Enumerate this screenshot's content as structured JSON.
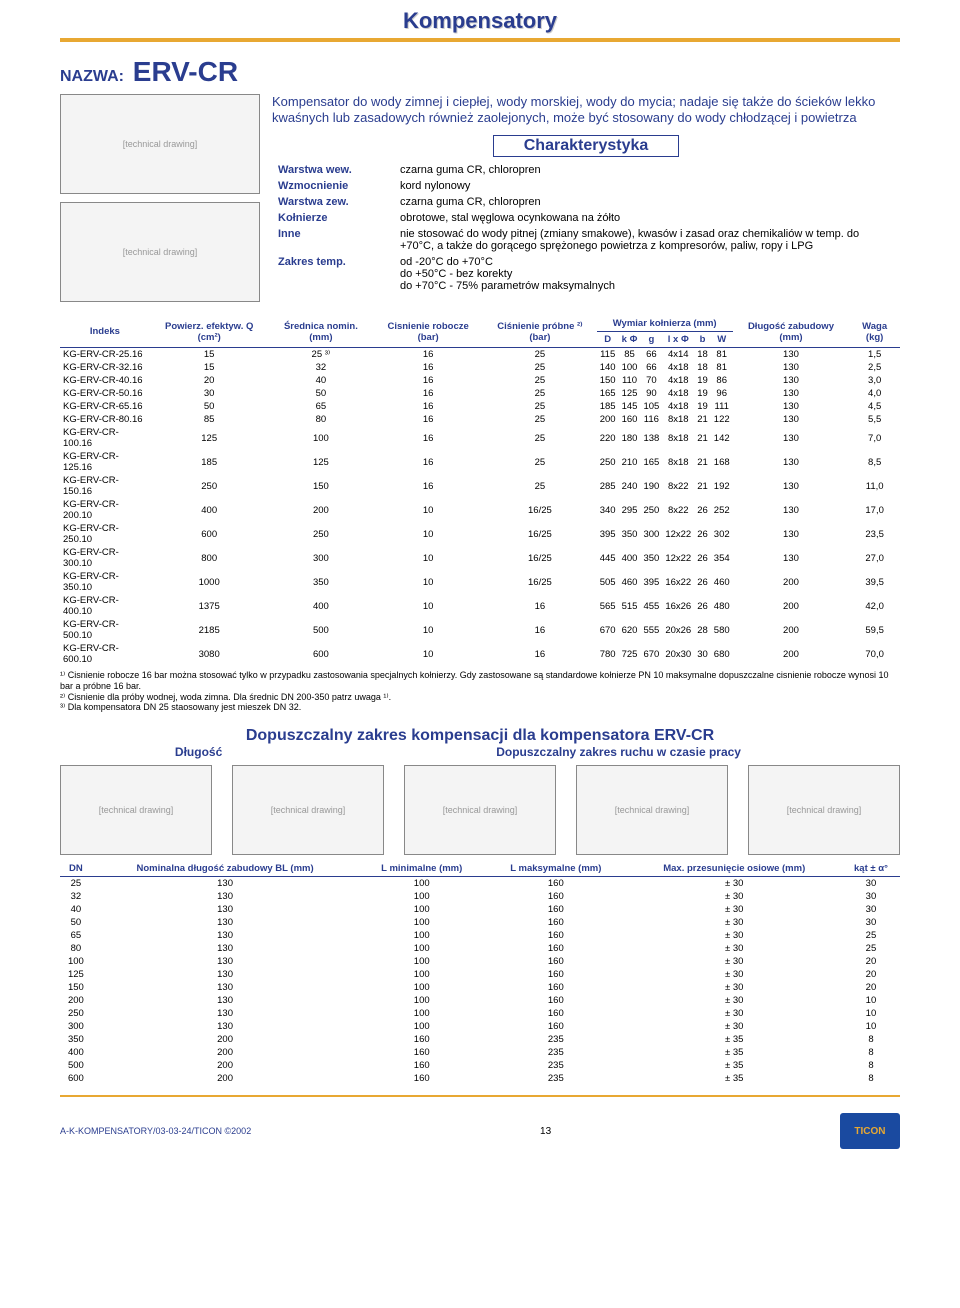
{
  "header": {
    "title": "Kompensatory"
  },
  "name": {
    "label": "NAZWA:",
    "value": "ERV-CR"
  },
  "description": "Kompensator do wody zimnej i ciepłej, wody morskiej, wody do mycia; nadaje się także do ścieków lekko kwaśnych lub zasadowych również zaolejonych, może być stosowany do wody chłodzącej i powietrza",
  "char": {
    "title": "Charakterystyka",
    "rows": [
      {
        "k": "Warstwa wew.",
        "v": "czarna guma CR, chloropren"
      },
      {
        "k": "Wzmocnienie",
        "v": "kord nylonowy"
      },
      {
        "k": "Warstwa zew.",
        "v": "czarna guma CR, chloropren"
      },
      {
        "k": "Kołnierze",
        "v": "obrotowe, stal węglowa ocynkowana na żółto"
      },
      {
        "k": "Inne",
        "v": "nie stosować do wody pitnej (zmiany smakowe), kwasów i zasad oraz chemikaliów w temp. do +70°C, a także do gorącego sprężonego powietrza z kompresorów, paliw, ropy i LPG"
      },
      {
        "k": "Zakres temp.",
        "v": "od -20°C do +70°C\ndo +50°C    - bez korekty\ndo +70°C    - 75% parametrów maksymalnych"
      }
    ]
  },
  "table1": {
    "headers": {
      "indeks": "Indeks",
      "powierz": "Powierz. efektyw. Q (cm²)",
      "srednica": "Średnica nomin. (mm)",
      "cisnR": "Cisnienie robocze (bar)",
      "cisnP": "Ciśnienie próbne ²⁾ (bar)",
      "wymiar": "Wymiar kołnierza (mm)",
      "D": "D",
      "kphi": "k Φ",
      "g": "g",
      "lphi": "l x Φ",
      "b": "b",
      "W": "W",
      "dlz": "Długość zabudowy (mm)",
      "waga": "Waga (kg)"
    },
    "rows": [
      [
        "KG-ERV-CR-25.16",
        "15",
        "25 ³⁾",
        "16",
        "25",
        "115",
        "85",
        "66",
        "4x14",
        "18",
        "81",
        "130",
        "1,5"
      ],
      [
        "KG-ERV-CR-32.16",
        "15",
        "32",
        "16",
        "25",
        "140",
        "100",
        "66",
        "4x18",
        "18",
        "81",
        "130",
        "2,5"
      ],
      [
        "KG-ERV-CR-40.16",
        "20",
        "40",
        "16",
        "25",
        "150",
        "110",
        "70",
        "4x18",
        "19",
        "86",
        "130",
        "3,0"
      ],
      [
        "KG-ERV-CR-50.16",
        "30",
        "50",
        "16",
        "25",
        "165",
        "125",
        "90",
        "4x18",
        "19",
        "96",
        "130",
        "4,0"
      ],
      [
        "KG-ERV-CR-65.16",
        "50",
        "65",
        "16",
        "25",
        "185",
        "145",
        "105",
        "4x18",
        "19",
        "111",
        "130",
        "4,5"
      ],
      [
        "KG-ERV-CR-80.16",
        "85",
        "80",
        "16",
        "25",
        "200",
        "160",
        "116",
        "8x18",
        "21",
        "122",
        "130",
        "5,5"
      ],
      [
        "KG-ERV-CR-100.16",
        "125",
        "100",
        "16",
        "25",
        "220",
        "180",
        "138",
        "8x18",
        "21",
        "142",
        "130",
        "7,0"
      ],
      [
        "KG-ERV-CR-125.16",
        "185",
        "125",
        "16",
        "25",
        "250",
        "210",
        "165",
        "8x18",
        "21",
        "168",
        "130",
        "8,5"
      ],
      [
        "KG-ERV-CR-150.16",
        "250",
        "150",
        "16",
        "25",
        "285",
        "240",
        "190",
        "8x22",
        "21",
        "192",
        "130",
        "11,0"
      ],
      [
        "KG-ERV-CR-200.10",
        "400",
        "200",
        "10",
        "16/25",
        "340",
        "295",
        "250",
        "8x22",
        "26",
        "252",
        "130",
        "17,0"
      ],
      [
        "KG-ERV-CR-250.10",
        "600",
        "250",
        "10",
        "16/25",
        "395",
        "350",
        "300",
        "12x22",
        "26",
        "302",
        "130",
        "23,5"
      ],
      [
        "KG-ERV-CR-300.10",
        "800",
        "300",
        "10",
        "16/25",
        "445",
        "400",
        "350",
        "12x22",
        "26",
        "354",
        "130",
        "27,0"
      ],
      [
        "KG-ERV-CR-350.10",
        "1000",
        "350",
        "10",
        "16/25",
        "505",
        "460",
        "395",
        "16x22",
        "26",
        "460",
        "200",
        "39,5"
      ],
      [
        "KG-ERV-CR-400.10",
        "1375",
        "400",
        "10",
        "16",
        "565",
        "515",
        "455",
        "16x26",
        "26",
        "480",
        "200",
        "42,0"
      ],
      [
        "KG-ERV-CR-500.10",
        "2185",
        "500",
        "10",
        "16",
        "670",
        "620",
        "555",
        "20x26",
        "28",
        "580",
        "200",
        "59,5"
      ],
      [
        "KG-ERV-CR-600.10",
        "3080",
        "600",
        "10",
        "16",
        "780",
        "725",
        "670",
        "20x30",
        "30",
        "680",
        "200",
        "70,0"
      ]
    ]
  },
  "footnotes": [
    "¹⁾ Cisnienie robocze 16 bar można stosować tylko w przypadku zastosowania specjalnych kołnierzy. Gdy zastosowane są standardowe kołnierze PN 10 maksymalne dopuszczalne cisnienie robocze wynosi 10 bar a próbne 16 bar.",
    "²⁾ Cisnienie dla próby wodnej, woda zimna. Dla średnic DN 200-350 patrz uwaga ¹⁾.",
    "³⁾ Dla kompensatora DN 25 staosowany jest mieszek DN 32."
  ],
  "section2": {
    "title": "Dopuszczalny zakres kompensacji dla kompensatora ERV-CR",
    "left": "Długość",
    "right": "Dopuszczalny zakres ruchu w czasie pracy"
  },
  "table2": {
    "headers": {
      "dn": "DN",
      "bl": "Nominalna długość zabudowy BL (mm)",
      "lmin": "L minimalne (mm)",
      "lmax": "L maksymalne (mm)",
      "przes": "Max. przesunięcie osiowe (mm)",
      "kat": "kąt ± α°"
    },
    "rows": [
      [
        "25",
        "130",
        "100",
        "160",
        "± 30",
        "30"
      ],
      [
        "32",
        "130",
        "100",
        "160",
        "± 30",
        "30"
      ],
      [
        "40",
        "130",
        "100",
        "160",
        "± 30",
        "30"
      ],
      [
        "50",
        "130",
        "100",
        "160",
        "± 30",
        "30"
      ],
      [
        "65",
        "130",
        "100",
        "160",
        "± 30",
        "25"
      ],
      [
        "80",
        "130",
        "100",
        "160",
        "± 30",
        "25"
      ],
      [
        "100",
        "130",
        "100",
        "160",
        "± 30",
        "20"
      ],
      [
        "125",
        "130",
        "100",
        "160",
        "± 30",
        "20"
      ],
      [
        "150",
        "130",
        "100",
        "160",
        "± 30",
        "20"
      ],
      [
        "200",
        "130",
        "100",
        "160",
        "± 30",
        "10"
      ],
      [
        "250",
        "130",
        "100",
        "160",
        "± 30",
        "10"
      ],
      [
        "300",
        "130",
        "100",
        "160",
        "± 30",
        "10"
      ],
      [
        "350",
        "200",
        "160",
        "235",
        "± 35",
        "8"
      ],
      [
        "400",
        "200",
        "160",
        "235",
        "± 35",
        "8"
      ],
      [
        "500",
        "200",
        "160",
        "235",
        "± 35",
        "8"
      ],
      [
        "600",
        "200",
        "160",
        "235",
        "± 35",
        "8"
      ]
    ]
  },
  "footer": {
    "left": "A-K-KOMPENSATORY/03-03-24/TICON ©2002",
    "page": "13",
    "logo": "TICON"
  },
  "placeholders": {
    "img": "[technical drawing]"
  }
}
